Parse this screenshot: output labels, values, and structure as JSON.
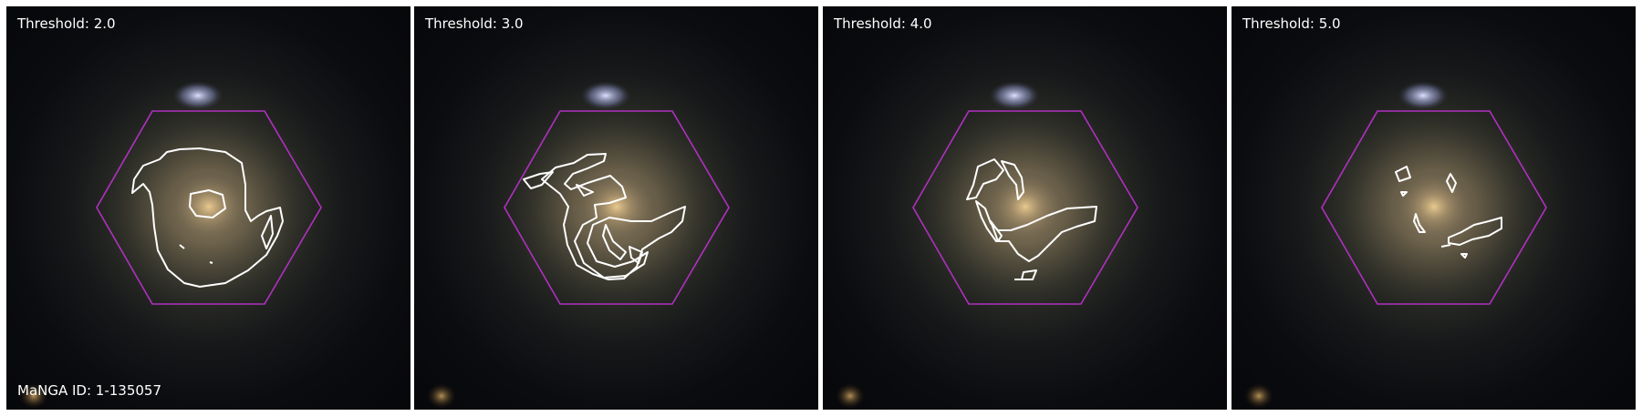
{
  "panels": [
    {
      "threshold_label": "Threshold: 2.0"
    },
    {
      "threshold_label": "Threshold: 3.0"
    },
    {
      "threshold_label": "Threshold: 4.0"
    },
    {
      "threshold_label": "Threshold: 5.0"
    }
  ],
  "manga_id_label": "MaNGA ID: 1-135057",
  "colors": {
    "hexagon": "#b030c0",
    "contour": "#ffffff"
  }
}
